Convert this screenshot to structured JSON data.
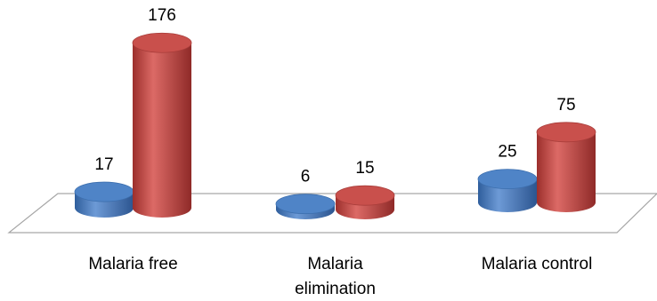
{
  "chart_data": {
    "type": "bar",
    "style": "3d-cylinder",
    "categories": [
      "Malaria free",
      "Malaria elimination",
      "Malaria control"
    ],
    "category_lines": [
      [
        "Malaria free"
      ],
      [
        "Malaria",
        "elimination"
      ],
      [
        "Malaria control"
      ]
    ],
    "series": [
      {
        "values": [
          17,
          6,
          25
        ],
        "color": "#4a7ebb"
      },
      {
        "values": [
          176,
          15,
          75
        ],
        "color": "#be4b48"
      }
    ],
    "ylim": [
      0,
      180
    ],
    "grid": false,
    "legend": "none",
    "data_labels": true
  }
}
